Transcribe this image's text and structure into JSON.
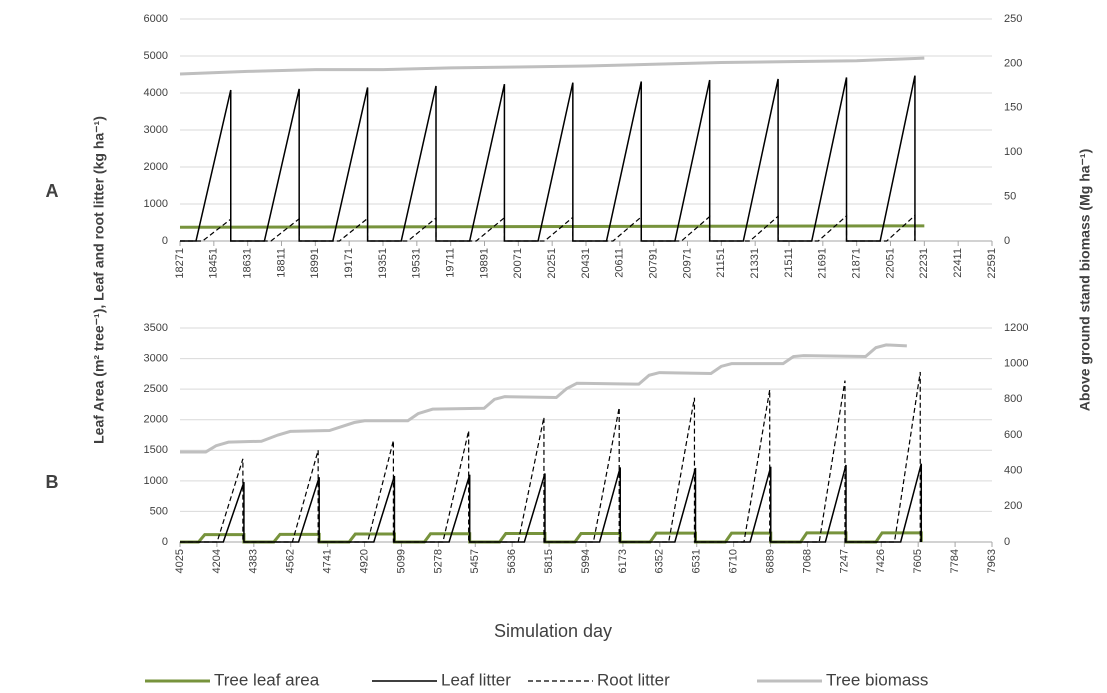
{
  "chart_data": [
    {
      "type": "line",
      "label": "A",
      "xlim": [
        18271,
        22591
      ],
      "xticks": [
        18271,
        18451,
        18631,
        18811,
        18991,
        19171,
        19351,
        19531,
        19711,
        19891,
        20071,
        20251,
        20431,
        20611,
        20791,
        20971,
        21151,
        21331,
        21511,
        21691,
        21871,
        22051,
        22231,
        22411,
        22591
      ],
      "ylim": [
        0,
        6000
      ],
      "yticks": [
        0,
        1000,
        2000,
        3000,
        4000,
        5000,
        6000
      ],
      "y2lim": [
        0,
        250
      ],
      "y2ticks": [
        0,
        50,
        100,
        150,
        200,
        250
      ],
      "grid": true,
      "series": [
        {
          "name": "Tree leaf area",
          "color": "#77933c",
          "width": 3,
          "dash": "none",
          "x": [
            18271,
            22231
          ],
          "values": [
            370,
            410
          ]
        },
        {
          "name": "Leaf litter",
          "color": "#000000",
          "width": 1.5,
          "dash": "none",
          "x": [
            18271,
            18356,
            18541,
            18541,
            18720,
            18905,
            18905,
            19084,
            19269,
            19269,
            19448,
            19633,
            19633,
            19812,
            19997,
            19997,
            20176,
            20361,
            20361,
            20540,
            20725,
            20725,
            20904,
            21089,
            21089,
            21268,
            21453,
            21453,
            21632,
            21817,
            21817,
            21996,
            22181,
            22181
          ],
          "values": [
            0,
            0,
            4080,
            0,
            0,
            4110,
            0,
            0,
            4150,
            0,
            0,
            4190,
            0,
            0,
            4240,
            0,
            0,
            4280,
            0,
            0,
            4310,
            0,
            0,
            4350,
            0,
            0,
            4380,
            0,
            0,
            4420,
            0,
            0,
            4470,
            0
          ]
        },
        {
          "name": "Root litter",
          "color": "#000000",
          "width": 1.2,
          "dash": "5 3",
          "x": [
            18271,
            18391,
            18541,
            18541,
            18755,
            18905,
            18905,
            19119,
            19269,
            19269,
            19483,
            19633,
            19633,
            19847,
            19997,
            19997,
            20211,
            20361,
            20361,
            20575,
            20725,
            20725,
            20939,
            21089,
            21089,
            21303,
            21453,
            21453,
            21667,
            21817,
            21817,
            22031,
            22181,
            22181
          ],
          "values": [
            0,
            0,
            590,
            0,
            0,
            600,
            0,
            0,
            610,
            0,
            0,
            620,
            0,
            0,
            630,
            0,
            0,
            640,
            0,
            0,
            650,
            0,
            0,
            660,
            0,
            0,
            670,
            0,
            0,
            680,
            0,
            0,
            690,
            0
          ]
        },
        {
          "name": "Tree biomass",
          "color": "#bfbfbf",
          "width": 3,
          "dash": "none",
          "axis": "y2",
          "x": [
            18271,
            18631,
            18991,
            19351,
            19711,
            20071,
            20431,
            20791,
            21151,
            21511,
            21871,
            22231
          ],
          "values": [
            188,
            191,
            193,
            193,
            195,
            196,
            197,
            199,
            201,
            202,
            203,
            206
          ]
        }
      ]
    },
    {
      "type": "line",
      "label": "B",
      "xlim": [
        4025,
        7963
      ],
      "xticks": [
        4025,
        4204,
        4383,
        4562,
        4741,
        4920,
        5099,
        5278,
        5457,
        5636,
        5815,
        5994,
        6173,
        6352,
        6531,
        6710,
        6889,
        7068,
        7247,
        7426,
        7605,
        7784,
        7963
      ],
      "ylim": [
        0,
        3500
      ],
      "yticks": [
        0,
        500,
        1000,
        1500,
        2000,
        2500,
        3000,
        3500
      ],
      "y2lim": [
        0,
        1200
      ],
      "y2ticks": [
        0,
        200,
        400,
        600,
        800,
        1000,
        1200
      ],
      "grid": true,
      "series": [
        {
          "color": "#77933c",
          "width": 3,
          "dash": "none",
          "x": [
            4025,
            4115,
            4145,
            4335,
            4335,
            4480,
            4510,
            4700,
            4700,
            4845,
            4875,
            5065,
            5065,
            5210,
            5240,
            5430,
            5430,
            5575,
            5605,
            5795,
            5795,
            5940,
            5970,
            6160,
            6160,
            6305,
            6335,
            6525,
            6525,
            6670,
            6700,
            6890,
            6890,
            7035,
            7065,
            7255,
            7255,
            7400,
            7430,
            7620,
            7620
          ],
          "values": [
            0,
            0,
            120,
            120,
            0,
            0,
            125,
            125,
            0,
            0,
            130,
            130,
            0,
            0,
            135,
            135,
            0,
            0,
            140,
            140,
            0,
            0,
            140,
            140,
            0,
            0,
            145,
            145,
            0,
            0,
            145,
            145,
            0,
            0,
            150,
            150,
            0,
            0,
            150,
            150,
            0
          ]
        },
        {
          "color": "#000000",
          "width": 1.5,
          "dash": "none",
          "x": [
            4025,
            4235,
            4335,
            4335,
            4600,
            4700,
            4700,
            4965,
            5065,
            5065,
            5330,
            5430,
            5430,
            5695,
            5795,
            5795,
            6060,
            6160,
            6160,
            6425,
            6525,
            6525,
            6790,
            6890,
            6890,
            7155,
            7255,
            7255,
            7520,
            7620,
            7620
          ],
          "values": [
            0,
            0,
            980,
            0,
            0,
            1060,
            0,
            0,
            1080,
            0,
            0,
            1100,
            0,
            0,
            1120,
            0,
            0,
            1220,
            0,
            0,
            1210,
            0,
            0,
            1230,
            0,
            0,
            1260,
            0,
            0,
            1280,
            0
          ]
        },
        {
          "color": "#000000",
          "width": 1.2,
          "dash": "5 3",
          "x": [
            4025,
            4205,
            4330,
            4330,
            4570,
            4695,
            4695,
            4935,
            5060,
            5060,
            5300,
            5425,
            5425,
            5665,
            5790,
            5790,
            6030,
            6155,
            6155,
            6395,
            6520,
            6520,
            6760,
            6885,
            6885,
            7125,
            7250,
            7250,
            7490,
            7615,
            7615
          ],
          "values": [
            0,
            0,
            1360,
            0,
            0,
            1500,
            0,
            0,
            1660,
            0,
            0,
            1820,
            0,
            0,
            2040,
            0,
            0,
            2200,
            0,
            0,
            2360,
            0,
            0,
            2490,
            0,
            0,
            2640,
            0,
            0,
            2780,
            0
          ]
        },
        {
          "color": "#bfbfbf",
          "width": 3,
          "dash": "none",
          "axis": "y2",
          "x": [
            4025,
            4150,
            4200,
            4260,
            4420,
            4500,
            4560,
            4750,
            4870,
            4920,
            5130,
            5180,
            5250,
            5500,
            5550,
            5600,
            5850,
            5900,
            5950,
            6250,
            6300,
            6350,
            6600,
            6650,
            6700,
            6950,
            7000,
            7050,
            7350,
            7400,
            7450,
            7550
          ],
          "values": [
            505,
            505,
            540,
            560,
            565,
            600,
            620,
            625,
            670,
            680,
            680,
            720,
            745,
            750,
            800,
            815,
            810,
            860,
            890,
            885,
            935,
            950,
            945,
            985,
            1000,
            1000,
            1040,
            1045,
            1040,
            1090,
            1105,
            1100
          ]
        }
      ]
    }
  ],
  "xlabel": "Simulation day",
  "ylabel": "Leaf Area (m² tree⁻¹), Leaf and root litter (kg ha⁻¹)",
  "y2label": "Above ground stand biomass (Mg ha⁻¹)"
}
